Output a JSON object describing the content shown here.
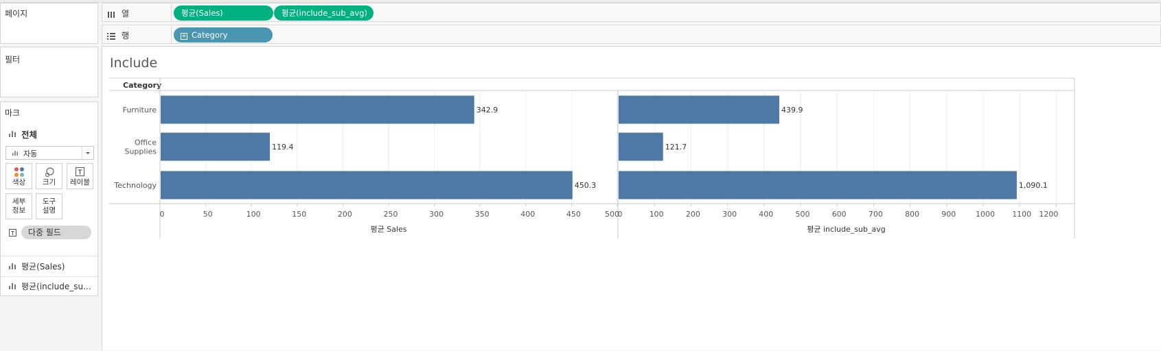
{
  "left_panel": {
    "pages_title": "페이지",
    "filters_title": "필터",
    "marks": {
      "title": "마크",
      "all_label": "전체",
      "mark_type": "자동",
      "buttons": [
        {
          "label": "색상",
          "icon": "color-dots-icon"
        },
        {
          "label": "크기",
          "icon": "size-icon"
        },
        {
          "label": "레이블",
          "icon": "label-icon"
        },
        {
          "label": "세부\n정보",
          "icon": "detail-icon"
        },
        {
          "label": "도구\n설명",
          "icon": "tooltip-icon"
        }
      ],
      "field_pill": "다중 필드",
      "measures": [
        "평균(Sales)",
        "평균(include_su..."
      ]
    }
  },
  "shelves": {
    "columns": {
      "label": "열",
      "pills": [
        "평균(Sales)",
        "평균(include_sub_avg)"
      ]
    },
    "rows": {
      "label": "행",
      "pills": [
        "Category"
      ]
    }
  },
  "colors": {
    "bar": "#4e79a7",
    "pill_green": "#00b180",
    "pill_blue": "#4996b2"
  },
  "worksheet": {
    "title": "Include",
    "row_header": "Category"
  },
  "chart_data": {
    "type": "bar",
    "orientation": "horizontal",
    "categories": [
      "Furniture",
      "Office Supplies",
      "Technology"
    ],
    "category_display": [
      [
        "Furniture"
      ],
      [
        "Office",
        "Supplies"
      ],
      [
        "Technology"
      ]
    ],
    "panes": [
      {
        "name": "평균 Sales",
        "axis_label": "평균 Sales",
        "values": [
          342.9,
          119.4,
          450.3
        ],
        "value_labels": [
          "342.9",
          "119.4",
          "450.3"
        ],
        "xlim": [
          0,
          500
        ],
        "ticks": [
          0,
          50,
          100,
          150,
          200,
          250,
          300,
          350,
          400,
          450,
          500
        ]
      },
      {
        "name": "평균 include_sub_avg",
        "axis_label": "평균 include_sub_avg",
        "values": [
          439.9,
          121.7,
          1090.1
        ],
        "value_labels": [
          "439.9",
          "121.7",
          "1,090.1"
        ],
        "xlim": [
          0,
          1250
        ],
        "ticks": [
          0,
          100,
          200,
          300,
          400,
          500,
          600,
          700,
          800,
          900,
          1000,
          1100,
          1200
        ]
      }
    ],
    "grid": true,
    "legend": "none"
  }
}
